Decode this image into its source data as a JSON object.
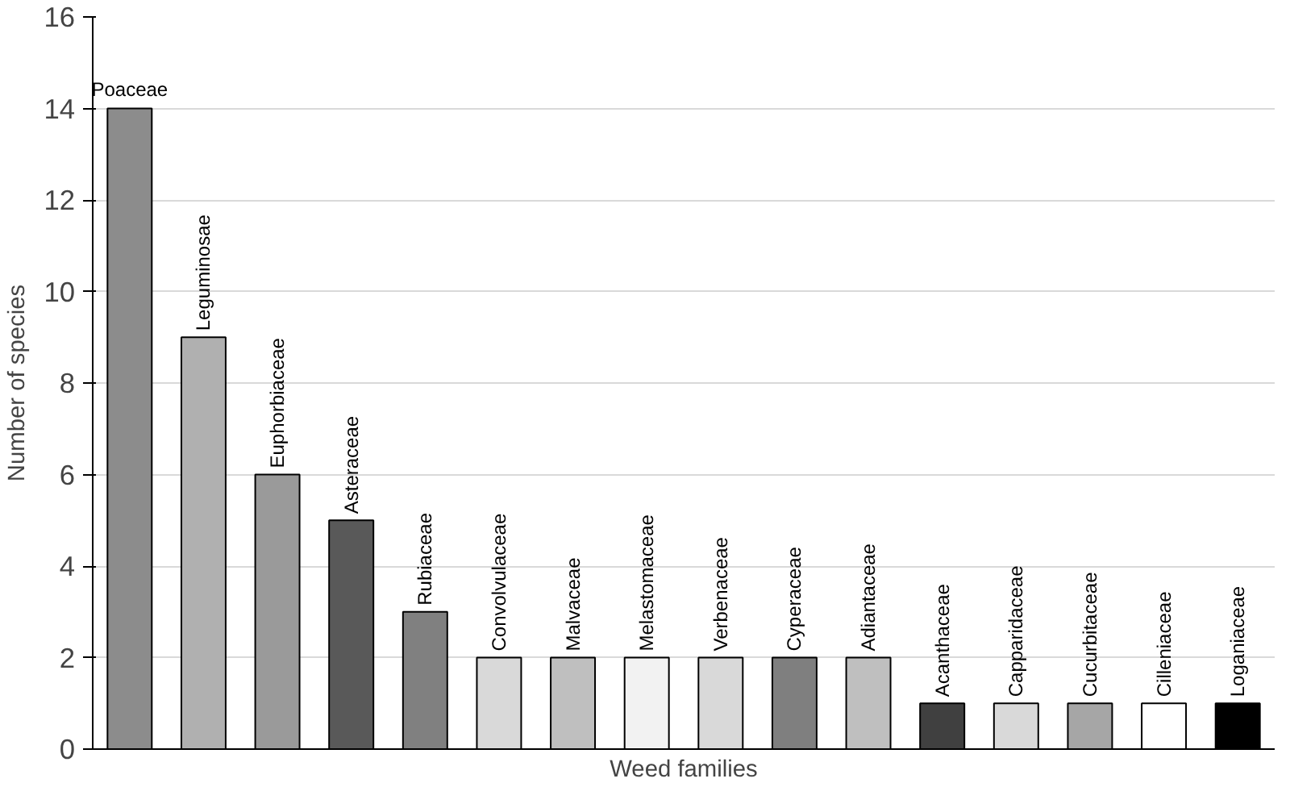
{
  "chart_data": {
    "type": "bar",
    "xlabel": "Weed families",
    "ylabel": "Number of species",
    "categories": [
      "Poaceae",
      "Leguminosae",
      "Euphorbiaceae",
      "Asteraceae",
      "Rubiaceae",
      "Convolvulaceae",
      "Malvaceae",
      "Melastomaceae",
      "Verbenaceae",
      "Cyperaceae",
      "Adiantaceae",
      "Acanthaceae",
      "Capparidaceae",
      "Cucurbitaceae",
      "Cilleniaceae",
      "Loganiaceae"
    ],
    "values": [
      14,
      9,
      6,
      5,
      3,
      2,
      2,
      2,
      2,
      2,
      2,
      1,
      1,
      1,
      1,
      1
    ],
    "colors": [
      "#8c8c8c",
      "#b0b0b0",
      "#9a9a9a",
      "#595959",
      "#808080",
      "#d9d9d9",
      "#bfbfbf",
      "#f2f2f2",
      "#d9d9d9",
      "#7f7f7f",
      "#bfbfbf",
      "#404040",
      "#d9d9d9",
      "#a6a6a6",
      "#ffffff",
      "#000000"
    ],
    "ylim": [
      0,
      16
    ],
    "yticks": [
      0,
      2,
      4,
      6,
      8,
      10,
      12,
      14,
      16
    ],
    "grid": "y",
    "tick_labels": "y"
  }
}
